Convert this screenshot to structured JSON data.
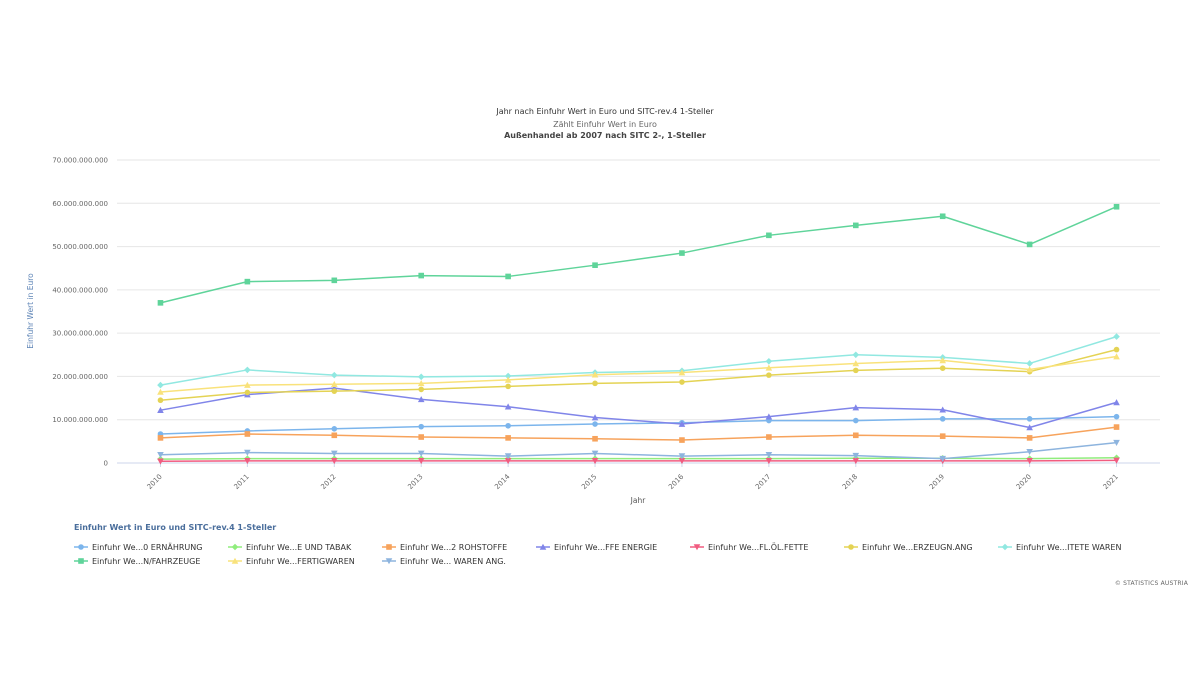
{
  "chart_data": {
    "type": "line",
    "title": "Jahr nach Einfuhr Wert in Euro und SITC-rev.4 1-Steller",
    "subtitle": "Zählt Einfuhr Wert in Euro",
    "subtitle2": "Außenhandel ab 2007 nach SITC 2-, 1-Steller",
    "xlabel": "Jahr",
    "ylabel": "Einfuhr Wert in Euro",
    "ylim": [
      0,
      70000000000
    ],
    "yticks": [
      "0",
      "10.000.000.000",
      "20.000.000.000",
      "30.000.000.000",
      "40.000.000.000",
      "50.000.000.000",
      "60.000.000.000",
      "70.000.000.000"
    ],
    "x": [
      "2010",
      "2011",
      "2012",
      "2013",
      "2014",
      "2015",
      "2016",
      "2017",
      "2018",
      "2019",
      "2020",
      "2021"
    ],
    "grid": true,
    "legend_position": "bottom",
    "legend_title": "Einfuhr Wert in Euro und SITC-rev.4 1-Steller",
    "series": [
      {
        "name": "Einfuhr We...0 ERNÄHRUNG",
        "color": "#7cb5ec",
        "marker": "circle",
        "values": [
          6700000000,
          7400000000,
          7900000000,
          8400000000,
          8600000000,
          9000000000,
          9300000000,
          9800000000,
          9800000000,
          10200000000,
          10200000000,
          10700000000
        ]
      },
      {
        "name": "Einfuhr We...E UND TABAK",
        "color": "#90ed7d",
        "marker": "diamond",
        "values": [
          900000000,
          1000000000,
          1000000000,
          1000000000,
          1000000000,
          1000000000,
          1000000000,
          1000000000,
          1100000000,
          1100000000,
          1000000000,
          1200000000
        ]
      },
      {
        "name": "Einfuhr We...2 ROHSTOFFE",
        "color": "#f7a35c",
        "marker": "square",
        "values": [
          5800000000,
          6700000000,
          6400000000,
          6000000000,
          5800000000,
          5600000000,
          5300000000,
          6000000000,
          6400000000,
          6200000000,
          5800000000,
          8300000000
        ]
      },
      {
        "name": "Einfuhr We...FFE ENERGIE",
        "color": "#8085e9",
        "marker": "triangle",
        "values": [
          12200000000,
          15800000000,
          17300000000,
          14700000000,
          13000000000,
          10500000000,
          9000000000,
          10700000000,
          12800000000,
          12300000000,
          8200000000,
          14000000000
        ]
      },
      {
        "name": "Einfuhr We...FL.ÖL.FETTE",
        "color": "#f15c80",
        "marker": "triangle-down",
        "values": [
          400000000,
          500000000,
          500000000,
          500000000,
          500000000,
          500000000,
          500000000,
          500000000,
          500000000,
          500000000,
          500000000,
          600000000
        ]
      },
      {
        "name": "Einfuhr We...ERZEUGN.ANG",
        "color": "#e4d354",
        "marker": "circle",
        "values": [
          14500000000,
          16300000000,
          16600000000,
          17000000000,
          17700000000,
          18400000000,
          18700000000,
          20300000000,
          21400000000,
          21900000000,
          21100000000,
          26200000000
        ]
      },
      {
        "name": "Einfuhr We...ITETE WAREN",
        "color": "#91e8e1",
        "marker": "diamond",
        "values": [
          18000000000,
          21500000000,
          20300000000,
          19900000000,
          20100000000,
          20900000000,
          21300000000,
          23500000000,
          25000000000,
          24400000000,
          23000000000,
          29200000000
        ]
      },
      {
        "name": "Einfuhr We...N/FAHRZEUGE",
        "color": "#5fd49a",
        "marker": "square",
        "values": [
          37000000000,
          41900000000,
          42200000000,
          43300000000,
          43100000000,
          45700000000,
          48500000000,
          52600000000,
          54900000000,
          57000000000,
          50500000000,
          59200000000
        ]
      },
      {
        "name": "Einfuhr We...FERTIGWAREN",
        "color": "#f9e27b",
        "marker": "triangle",
        "values": [
          16400000000,
          18000000000,
          18200000000,
          18400000000,
          19200000000,
          20400000000,
          20900000000,
          22000000000,
          23000000000,
          23700000000,
          21600000000,
          24600000000
        ]
      },
      {
        "name": "Einfuhr We... WAREN ANG.",
        "color": "#8db4de",
        "marker": "triangle-down",
        "values": [
          1900000000,
          2400000000,
          2200000000,
          2200000000,
          1600000000,
          2200000000,
          1600000000,
          1900000000,
          1700000000,
          1000000000,
          2600000000,
          4700000000
        ]
      }
    ]
  },
  "credit": "© STATISTICS AUSTRIA"
}
